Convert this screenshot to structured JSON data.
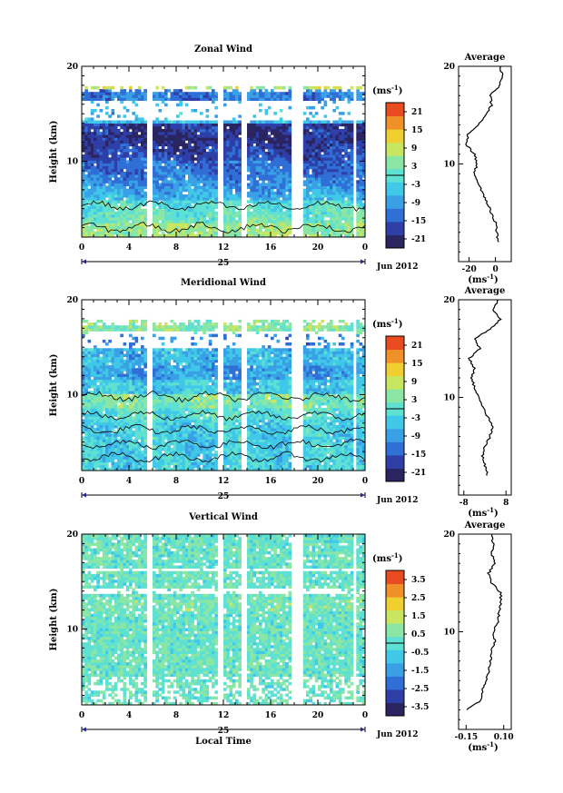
{
  "x_axis_label": "Local Time",
  "date_label": "Jun 2012",
  "day_label": "25",
  "height_label": "Height (km)",
  "cbar_unit": "(ms",
  "unit_exp": "-1",
  "avg_unit": "(ms",
  "avg_title": "Average",
  "colors": [
    "#2a2560",
    "#2f3fa8",
    "#2f6fd6",
    "#3aa0e6",
    "#40c8e8",
    "#5ee0d2",
    "#8ae6a4",
    "#c8e660",
    "#f0d030",
    "#f09028",
    "#e84c20"
  ],
  "chart_data": [
    {
      "type": "heatmap",
      "title": "Zonal Wind",
      "x_ticks": [
        "0",
        "4",
        "8",
        "12",
        "16",
        "20",
        "0"
      ],
      "x_range": [
        0,
        24
      ],
      "y_ticks": [
        "10",
        "20"
      ],
      "y_range": [
        2,
        20
      ],
      "colorbar_ticks": [
        "21",
        "15",
        "9",
        "3",
        "-3",
        "-9",
        "-15",
        "-21"
      ],
      "colorbar_range": [
        -24,
        24
      ],
      "data_gaps_hours": [
        [
          5.4,
          6.0
        ],
        [
          11.6,
          12.1
        ],
        [
          13.6,
          14.0
        ],
        [
          17.7,
          18.8
        ],
        [
          22.9,
          23.3
        ]
      ],
      "profile_title": "Average",
      "profile_x_ticks": [
        "-20",
        "0"
      ],
      "profile_xlim": [
        -28,
        12
      ],
      "profile": {
        "height": [
          2,
          3,
          4,
          5,
          6,
          7,
          8,
          9,
          10,
          11,
          12,
          13,
          14,
          15,
          16,
          17,
          18,
          19,
          20
        ],
        "value": [
          2,
          1,
          0,
          -3,
          -6,
          -10,
          -13,
          -16,
          -14,
          -16,
          -22,
          -21,
          -13,
          -8,
          -3,
          -4,
          3,
          5,
          4
        ]
      }
    },
    {
      "type": "heatmap",
      "title": "Meridional Wind",
      "x_ticks": [
        "0",
        "4",
        "8",
        "12",
        "16",
        "20",
        "0"
      ],
      "x_range": [
        0,
        24
      ],
      "y_ticks": [
        "10",
        "20"
      ],
      "y_range": [
        2,
        20
      ],
      "colorbar_ticks": [
        "21",
        "15",
        "9",
        "3",
        "-3",
        "-9",
        "-15",
        "-21"
      ],
      "colorbar_range": [
        -24,
        24
      ],
      "data_gaps_hours": [
        [
          5.4,
          6.0
        ],
        [
          11.6,
          12.1
        ],
        [
          13.6,
          14.0
        ],
        [
          17.7,
          18.8
        ],
        [
          22.9,
          23.3
        ]
      ],
      "profile_title": "Average",
      "profile_x_ticks": [
        "-8",
        "8"
      ],
      "profile_xlim": [
        -10,
        10
      ],
      "profile": {
        "height": [
          2,
          3,
          4,
          5,
          6,
          7,
          8,
          9,
          10,
          11,
          12,
          13,
          14,
          15,
          16,
          17,
          18,
          19,
          20
        ],
        "value": [
          1,
          0,
          -1,
          0,
          2,
          3,
          1,
          -1,
          -2,
          -4,
          -5,
          -4,
          -6,
          -2,
          -4,
          2,
          6,
          3,
          5
        ]
      }
    },
    {
      "type": "heatmap",
      "title": "Vertical Wind",
      "x_ticks": [
        "0",
        "4",
        "8",
        "12",
        "16",
        "20",
        "0"
      ],
      "x_range": [
        0,
        24
      ],
      "y_ticks": [
        "10",
        "20"
      ],
      "y_range": [
        2,
        20
      ],
      "colorbar_ticks": [
        "3.5",
        "2.5",
        "1.5",
        "0.5",
        "-0.5",
        "-1.5",
        "-2.5",
        "-3.5"
      ],
      "colorbar_range": [
        -4,
        4
      ],
      "data_gaps_hours": [
        [
          5.4,
          6.0
        ],
        [
          11.6,
          12.1
        ],
        [
          13.6,
          14.0
        ],
        [
          17.7,
          18.8
        ],
        [
          22.9,
          23.3
        ]
      ],
      "profile_title": "Average",
      "profile_x_ticks": [
        "-0.15",
        "0.10"
      ],
      "profile_xlim": [
        -0.2,
        0.15
      ],
      "profile": {
        "height": [
          2,
          3,
          4,
          5,
          6,
          7,
          8,
          9,
          10,
          11,
          12,
          13,
          14,
          15,
          16,
          17,
          18,
          19,
          20
        ],
        "value": [
          -0.15,
          -0.05,
          -0.04,
          -0.02,
          0.0,
          0.01,
          0.02,
          0.04,
          0.03,
          0.06,
          0.07,
          0.08,
          0.08,
          0.02,
          0.0,
          0.04,
          0.02,
          0.03,
          0.02
        ]
      }
    }
  ]
}
